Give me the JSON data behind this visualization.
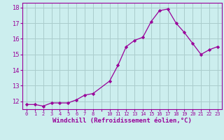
{
  "x": [
    0,
    1,
    2,
    3,
    4,
    5,
    6,
    7,
    8,
    10,
    11,
    12,
    13,
    14,
    15,
    16,
    17,
    18,
    19,
    20,
    21,
    22,
    23
  ],
  "y": [
    11.8,
    11.8,
    11.7,
    11.9,
    11.9,
    11.9,
    12.1,
    12.4,
    12.5,
    13.3,
    14.3,
    15.5,
    15.9,
    16.1,
    17.1,
    17.8,
    17.9,
    17.0,
    16.4,
    15.7,
    15.0,
    15.3,
    15.5
  ],
  "line_color": "#990099",
  "marker": "D",
  "marker_size": 2.2,
  "bg_color": "#cceeee",
  "grid_color": "#aacccc",
  "xlabel": "Windchill (Refroidissement éolien,°C)",
  "xlabel_color": "#990099",
  "tick_color": "#990099",
  "xlim": [
    -0.5,
    23.5
  ],
  "ylim": [
    11.5,
    18.3
  ],
  "yticks": [
    12,
    13,
    14,
    15,
    16,
    17,
    18
  ],
  "xtick_positions": [
    0,
    1,
    2,
    3,
    4,
    5,
    6,
    7,
    8,
    9,
    10,
    11,
    12,
    13,
    14,
    15,
    16,
    17,
    18,
    19,
    20,
    21,
    22,
    23
  ],
  "xtick_labels": [
    "0",
    "1",
    "2",
    "3",
    "4",
    "5",
    "6",
    "7",
    "8",
    "",
    "10",
    "11",
    "12",
    "13",
    "14",
    "15",
    "16",
    "17",
    "18",
    "19",
    "20",
    "21",
    "22",
    "23"
  ]
}
